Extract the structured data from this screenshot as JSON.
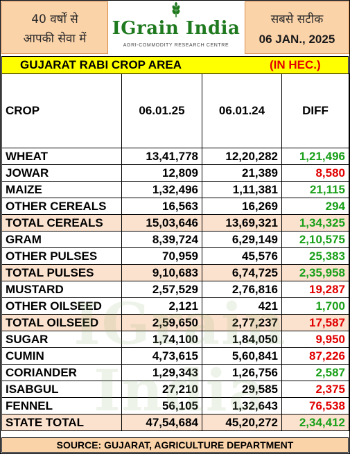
{
  "header": {
    "left_line1": "40 वर्षों से",
    "left_line2": "आपकी सेवा में",
    "logo_text": "IGrain India",
    "logo_subtitle": "AGRI-COMMODITY RESEARCH CENTRE",
    "right_line1": "सबसे सटीक",
    "right_date": "06 JAN., 2025"
  },
  "title": {
    "main": "GUJARAT RABI CROP AREA",
    "unit": "(IN HEC.)"
  },
  "watermark": "IGrain India",
  "table": {
    "columns": [
      "CROP",
      "06.01.25",
      "06.01.24",
      "DIFF"
    ],
    "rows": [
      {
        "crop": "WHEAT",
        "y2025": "13,41,778",
        "y2024": "12,20,282",
        "diff": "1,21,496",
        "sign": "pos",
        "total": false
      },
      {
        "crop": "JOWAR",
        "y2025": "12,809",
        "y2024": "21,389",
        "diff": "8,580",
        "sign": "neg",
        "total": false
      },
      {
        "crop": "MAIZE",
        "y2025": "1,32,496",
        "y2024": "1,11,381",
        "diff": "21,115",
        "sign": "pos",
        "total": false
      },
      {
        "crop": "OTHER CEREALS",
        "y2025": "16,563",
        "y2024": "16,269",
        "diff": "294",
        "sign": "pos",
        "total": false
      },
      {
        "crop": "TOTAL CEREALS",
        "y2025": "15,03,646",
        "y2024": "13,69,321",
        "diff": "1,34,325",
        "sign": "pos",
        "total": true
      },
      {
        "crop": "GRAM",
        "y2025": "8,39,724",
        "y2024": "6,29,149",
        "diff": "2,10,575",
        "sign": "pos",
        "total": false
      },
      {
        "crop": "OTHER PULSES",
        "y2025": "70,959",
        "y2024": "45,576",
        "diff": "25,383",
        "sign": "pos",
        "total": false
      },
      {
        "crop": "TOTAL PULSES",
        "y2025": "9,10,683",
        "y2024": "6,74,725",
        "diff": "2,35,958",
        "sign": "pos",
        "total": true
      },
      {
        "crop": "MUSTARD",
        "y2025": "2,57,529",
        "y2024": "2,76,816",
        "diff": "19,287",
        "sign": "neg",
        "total": false
      },
      {
        "crop": "OTHER OILSEED",
        "y2025": "2,121",
        "y2024": "421",
        "diff": "1,700",
        "sign": "pos",
        "total": false
      },
      {
        "crop": "TOTAL OILSEED",
        "y2025": "2,59,650",
        "y2024": "2,77,237",
        "diff": "17,587",
        "sign": "neg",
        "total": true
      },
      {
        "crop": "SUGAR",
        "y2025": "1,74,100",
        "y2024": "1,84,050",
        "diff": "9,950",
        "sign": "neg",
        "total": false
      },
      {
        "crop": "CUMIN",
        "y2025": "4,73,615",
        "y2024": "5,60,841",
        "diff": "87,226",
        "sign": "neg",
        "total": false
      },
      {
        "crop": "CORIANDER",
        "y2025": "1,29,343",
        "y2024": "1,26,756",
        "diff": "2,587",
        "sign": "pos",
        "total": false
      },
      {
        "crop": "ISABGUL",
        "y2025": "27,210",
        "y2024": "29,585",
        "diff": "2,375",
        "sign": "neg",
        "total": false
      },
      {
        "crop": "FENNEL",
        "y2025": "56,105",
        "y2024": "1,32,643",
        "diff": "76,538",
        "sign": "neg",
        "total": false
      },
      {
        "crop": "STATE TOTAL",
        "y2025": "47,54,684",
        "y2024": "45,20,272",
        "diff": "2,34,412",
        "sign": "pos",
        "total": true
      }
    ]
  },
  "footer": "SOURCE: GUJARAT, AGRICULTURE DEPARTMENT",
  "colors": {
    "positive": "#19a019",
    "negative": "#e10000",
    "title_bar": "#ffff00",
    "header_box": "#fbd3a9",
    "total_row": "#fbe2cf",
    "logo_green": "#1f7a1f"
  }
}
